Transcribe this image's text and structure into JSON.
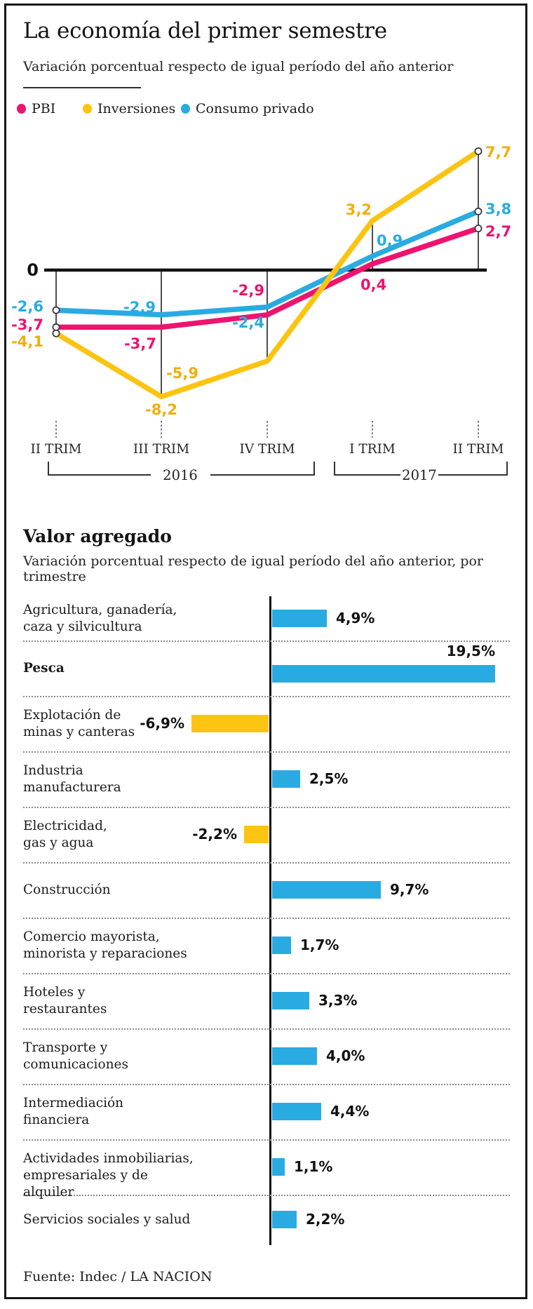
{
  "header": {
    "title": "La economía del primer semestre",
    "subtitle": "Variación porcentual respecto de igual período del año anterior"
  },
  "colors": {
    "pbi_pink": "#ee136f",
    "inversiones_yellow": "#fcc412",
    "inversiones_label_yellow": "#f0ae0e",
    "consumo_blue": "#29abe2",
    "bar_blue": "#29abe2",
    "bar_yellow": "#fdc412",
    "axis_black": "#141414"
  },
  "legend": [
    {
      "label": "PBI",
      "color": "#ee136f"
    },
    {
      "label": "Inversiones",
      "color": "#fcc412"
    },
    {
      "label": "Consumo privado",
      "color": "#29abe2"
    }
  ],
  "chart_data": [
    {
      "type": "line",
      "title": "La economía del primer semestre",
      "subtitle": "Variación porcentual respecto de igual período del año anterior",
      "categories": [
        "II TRIM",
        "III TRIM",
        "IV TRIM",
        "I TRIM",
        "II TRIM"
      ],
      "year_groups": [
        {
          "label": "2016",
          "from": 0,
          "to": 2
        },
        {
          "label": "2017",
          "from": 3,
          "to": 4
        }
      ],
      "baseline_label": "0",
      "ylim": [
        -8.2,
        7.7
      ],
      "series": [
        {
          "name": "Consumo privado",
          "color": "#29abe2",
          "values": [
            -2.6,
            -2.9,
            -2.4,
            0.9,
            3.8
          ],
          "point_labels": [
            "-2,6",
            "-2,9",
            "-2,4",
            "0,9",
            "3,8"
          ]
        },
        {
          "name": "PBI",
          "color": "#ee136f",
          "values": [
            -3.7,
            -3.7,
            -2.9,
            0.4,
            2.7
          ],
          "point_labels": [
            "-3,7",
            "-3,7",
            "-2,9",
            "0,4",
            "2,7"
          ]
        },
        {
          "name": "Inversiones",
          "color": "#fcc412",
          "values": [
            -4.1,
            -8.2,
            -5.9,
            3.2,
            7.7
          ],
          "point_labels": [
            "-4,1",
            "-8,2",
            "-5,9",
            "3,2",
            "7,7"
          ]
        }
      ]
    },
    {
      "type": "bar",
      "title": "Valor agregado",
      "subtitle": "Variación porcentual respecto de igual período del año anterior, por trimestre",
      "categories": [
        [
          "Agricultura, ganadería,",
          "caza y silvicultura"
        ],
        [
          "Pesca"
        ],
        [
          "Explotación de",
          "minas y canteras"
        ],
        [
          "Industria",
          "manufacturera"
        ],
        [
          "Electricidad,",
          "gas y agua"
        ],
        [
          "Construcción"
        ],
        [
          "Comercio mayorista,",
          "minorista y reparaciones"
        ],
        [
          "Hoteles y",
          "restaurantes"
        ],
        [
          "Transporte y",
          "comunicaciones"
        ],
        [
          "Intermediación",
          "financiera"
        ],
        [
          "Actividades inmobiliarias,",
          "empresariales y de alquiler"
        ],
        [
          "Servicios sociales y salud"
        ]
      ],
      "values": [
        4.9,
        19.5,
        -6.9,
        2.5,
        -2.2,
        9.7,
        1.7,
        3.3,
        4.0,
        4.4,
        1.1,
        2.2
      ],
      "value_labels": [
        "4,9%",
        "19,5%",
        "-6,9%",
        "2,5%",
        "-2,2%",
        "9,7%",
        "1,7%",
        "3,3%",
        "4,0%",
        "4,4%",
        "1,1%",
        "2,2%"
      ],
      "bold_categories": [
        "Pesca"
      ]
    }
  ],
  "footer": {
    "source": "Fuente: Indec / LA NACION"
  }
}
